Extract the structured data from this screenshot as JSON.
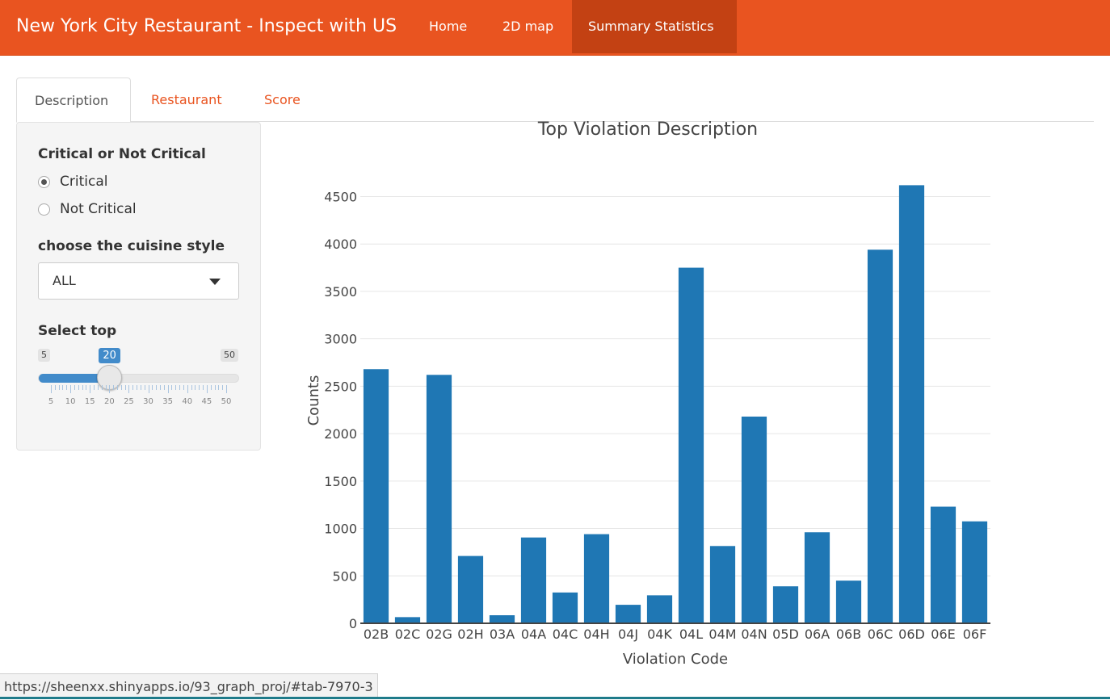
{
  "navbar": {
    "brand": "New York City Restaurant - Inspect with US",
    "items": [
      {
        "label": "Home",
        "active": false
      },
      {
        "label": "2D map",
        "active": false
      },
      {
        "label": "Summary Statistics",
        "active": true
      }
    ],
    "color": "#e95420",
    "active_color": "#c34113"
  },
  "tabs": [
    {
      "label": "Description",
      "active": true
    },
    {
      "label": "Restaurant",
      "active": false
    },
    {
      "label": "Score",
      "active": false
    }
  ],
  "sidebar": {
    "critical_label": "Critical or Not Critical",
    "radio_options": [
      {
        "label": "Critical",
        "checked": true
      },
      {
        "label": "Not Critical",
        "checked": false
      }
    ],
    "cuisine_label": "choose the cuisine style",
    "cuisine_value": "ALL",
    "slider": {
      "label": "Select top",
      "min": 5,
      "max": 50,
      "value": 20,
      "min_text": "5",
      "max_text": "50",
      "value_text": "20",
      "tick_labels": [
        "5",
        "10",
        "15",
        "20",
        "25",
        "30",
        "35",
        "40",
        "45",
        "50"
      ],
      "color": "#428bca"
    }
  },
  "chart_data": {
    "type": "bar",
    "title": "Top Violation Description",
    "xlabel": "Violation Code",
    "ylabel": "Counts",
    "categories": [
      "02B",
      "02C",
      "02G",
      "02H",
      "03A",
      "04A",
      "04C",
      "04H",
      "04J",
      "04K",
      "04L",
      "04M",
      "04N",
      "05D",
      "06A",
      "06B",
      "06C",
      "06D",
      "06E",
      "06F"
    ],
    "values": [
      2680,
      65,
      2620,
      710,
      85,
      905,
      325,
      940,
      195,
      295,
      3750,
      815,
      2180,
      390,
      960,
      450,
      3940,
      4620,
      1230,
      1075
    ],
    "y_ticks": [
      0,
      500,
      1000,
      1500,
      2000,
      2500,
      3000,
      3500,
      4000,
      4500
    ],
    "ylim": [
      0,
      4700
    ],
    "bar_color": "#1f77b4",
    "grid": true
  },
  "status_url": "https://sheenxx.shinyapps.io/93_graph_proj/#tab-7970-3"
}
